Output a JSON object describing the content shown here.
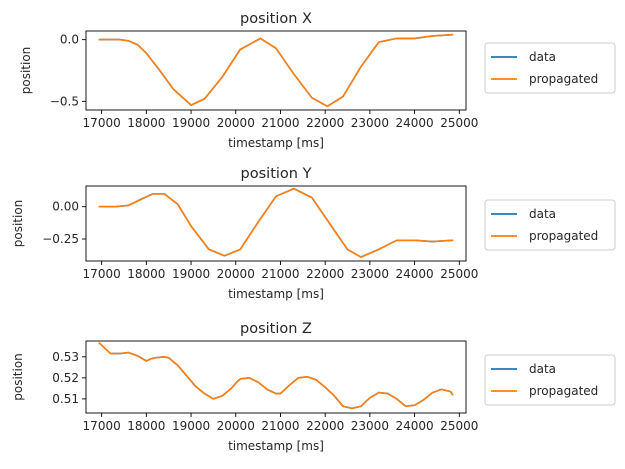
{
  "chart_data": [
    {
      "type": "line",
      "title": "position X",
      "xlabel": "timestamp [ms]",
      "ylabel": "position",
      "xlim": [
        16650,
        25150
      ],
      "ylim": [
        -0.57,
        0.07
      ],
      "xticks": [
        17000,
        18000,
        19000,
        20000,
        21000,
        22000,
        23000,
        24000,
        25000
      ],
      "xtick_labels": [
        "17000",
        "18000",
        "19000",
        "20000",
        "21000",
        "22000",
        "23000",
        "24000",
        "25000"
      ],
      "yticks": [
        0.0,
        -0.5
      ],
      "ytick_labels": [
        "0.0",
        "−0.5"
      ],
      "legend": "right",
      "x": [
        16950,
        17400,
        17600,
        17800,
        18000,
        18300,
        18600,
        19000,
        19300,
        19700,
        20100,
        20550,
        20900,
        21300,
        21700,
        22050,
        22400,
        22800,
        23200,
        23600,
        24000,
        24400,
        24850
      ],
      "series": [
        {
          "name": "data",
          "color": "#1f77b4",
          "values": [
            0.0,
            0.0,
            -0.01,
            -0.04,
            -0.11,
            -0.25,
            -0.4,
            -0.53,
            -0.48,
            -0.3,
            -0.08,
            0.01,
            -0.07,
            -0.28,
            -0.47,
            -0.54,
            -0.46,
            -0.22,
            -0.02,
            0.01,
            0.01,
            0.03,
            0.04
          ]
        },
        {
          "name": "propagated",
          "color": "#ff7f0e",
          "values": [
            0.0,
            0.0,
            -0.01,
            -0.04,
            -0.11,
            -0.25,
            -0.4,
            -0.53,
            -0.48,
            -0.3,
            -0.08,
            0.01,
            -0.07,
            -0.28,
            -0.47,
            -0.54,
            -0.46,
            -0.22,
            -0.02,
            0.01,
            0.01,
            0.03,
            0.04
          ]
        }
      ]
    },
    {
      "type": "line",
      "title": "position Y",
      "xlabel": "timestamp [ms]",
      "ylabel": "position",
      "xlim": [
        16650,
        25150
      ],
      "ylim": [
        -0.42,
        0.16
      ],
      "xticks": [
        17000,
        18000,
        19000,
        20000,
        21000,
        22000,
        23000,
        24000,
        25000
      ],
      "xtick_labels": [
        "17000",
        "18000",
        "19000",
        "20000",
        "21000",
        "22000",
        "23000",
        "24000",
        "25000"
      ],
      "yticks": [
        0.0,
        -0.25
      ],
      "ytick_labels": [
        "0.00",
        "−0.25"
      ],
      "legend": "right",
      "x": [
        16950,
        17300,
        17600,
        17900,
        18150,
        18400,
        18700,
        19000,
        19400,
        19750,
        20100,
        20500,
        20900,
        21300,
        21700,
        22100,
        22500,
        22800,
        23200,
        23600,
        24000,
        24400,
        24850
      ],
      "series": [
        {
          "name": "data",
          "color": "#1f77b4",
          "values": [
            0.0,
            0.0,
            0.01,
            0.06,
            0.1,
            0.1,
            0.02,
            -0.15,
            -0.33,
            -0.38,
            -0.33,
            -0.12,
            0.08,
            0.14,
            0.07,
            -0.13,
            -0.33,
            -0.39,
            -0.33,
            -0.26,
            -0.26,
            -0.27,
            -0.26
          ]
        },
        {
          "name": "propagated",
          "color": "#ff7f0e",
          "values": [
            0.0,
            0.0,
            0.01,
            0.06,
            0.1,
            0.1,
            0.02,
            -0.15,
            -0.33,
            -0.38,
            -0.33,
            -0.12,
            0.08,
            0.14,
            0.07,
            -0.13,
            -0.33,
            -0.39,
            -0.33,
            -0.26,
            -0.26,
            -0.27,
            -0.26
          ]
        }
      ]
    },
    {
      "type": "line",
      "title": "position Z",
      "xlabel": "timestamp [ms]",
      "ylabel": "position",
      "xlim": [
        16650,
        25150
      ],
      "ylim": [
        0.5033,
        0.5375
      ],
      "xticks": [
        17000,
        18000,
        19000,
        20000,
        21000,
        22000,
        23000,
        24000,
        25000
      ],
      "xtick_labels": [
        "17000",
        "18000",
        "19000",
        "20000",
        "21000",
        "22000",
        "23000",
        "24000",
        "25000"
      ],
      "yticks": [
        0.53,
        0.52,
        0.51
      ],
      "ytick_labels": [
        "0.53",
        "0.52",
        "0.51"
      ],
      "legend": "right",
      "x": [
        16950,
        17100,
        17200,
        17400,
        17600,
        17800,
        18000,
        18100,
        18200,
        18400,
        18500,
        18700,
        18900,
        19100,
        19300,
        19500,
        19700,
        19900,
        20000,
        20100,
        20300,
        20500,
        20700,
        20900,
        21000,
        21200,
        21400,
        21600,
        21800,
        22000,
        22200,
        22400,
        22600,
        22800,
        23000,
        23200,
        23400,
        23600,
        23800,
        24000,
        24200,
        24400,
        24600,
        24800,
        24850
      ],
      "series": [
        {
          "name": "data",
          "color": "#1f77b4",
          "values": [
            0.5365,
            0.5335,
            0.5315,
            0.5315,
            0.532,
            0.5305,
            0.528,
            0.529,
            0.5295,
            0.53,
            0.5295,
            0.526,
            0.521,
            0.516,
            0.5125,
            0.51,
            0.5115,
            0.515,
            0.5175,
            0.5195,
            0.52,
            0.518,
            0.5145,
            0.5125,
            0.5125,
            0.5165,
            0.52,
            0.5205,
            0.519,
            0.5155,
            0.5115,
            0.5065,
            0.5055,
            0.5065,
            0.5105,
            0.513,
            0.5125,
            0.51,
            0.5065,
            0.507,
            0.5095,
            0.513,
            0.5145,
            0.5135,
            0.512
          ]
        },
        {
          "name": "propagated",
          "color": "#ff7f0e",
          "values": [
            0.5365,
            0.5335,
            0.5315,
            0.5315,
            0.532,
            0.5305,
            0.528,
            0.529,
            0.5295,
            0.53,
            0.5295,
            0.526,
            0.521,
            0.516,
            0.5125,
            0.51,
            0.5115,
            0.515,
            0.5175,
            0.5195,
            0.52,
            0.518,
            0.5145,
            0.5125,
            0.5125,
            0.5165,
            0.52,
            0.5205,
            0.519,
            0.5155,
            0.5115,
            0.5065,
            0.5055,
            0.5065,
            0.5105,
            0.513,
            0.5125,
            0.51,
            0.5065,
            0.507,
            0.5095,
            0.513,
            0.5145,
            0.5135,
            0.512
          ]
        }
      ]
    }
  ]
}
